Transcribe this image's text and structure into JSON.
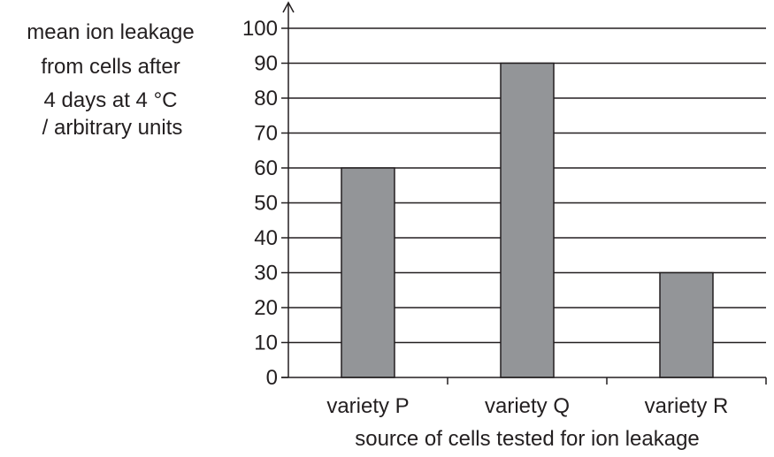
{
  "chart_data": {
    "type": "bar",
    "categories": [
      "variety P",
      "variety Q",
      "variety R"
    ],
    "values": [
      60,
      90,
      30
    ],
    "xlabel": "source of cells tested for ion leakage",
    "ylabel_lines": [
      "mean ion leakage",
      "from cells after",
      "4 days at 4 °C",
      "/ arbitrary units"
    ],
    "ylim": [
      0,
      100
    ],
    "yticks": [
      0,
      10,
      20,
      30,
      40,
      50,
      60,
      70,
      80,
      90,
      100
    ],
    "grid": true,
    "bar_color": "#939598",
    "line_color": "#231f20"
  }
}
